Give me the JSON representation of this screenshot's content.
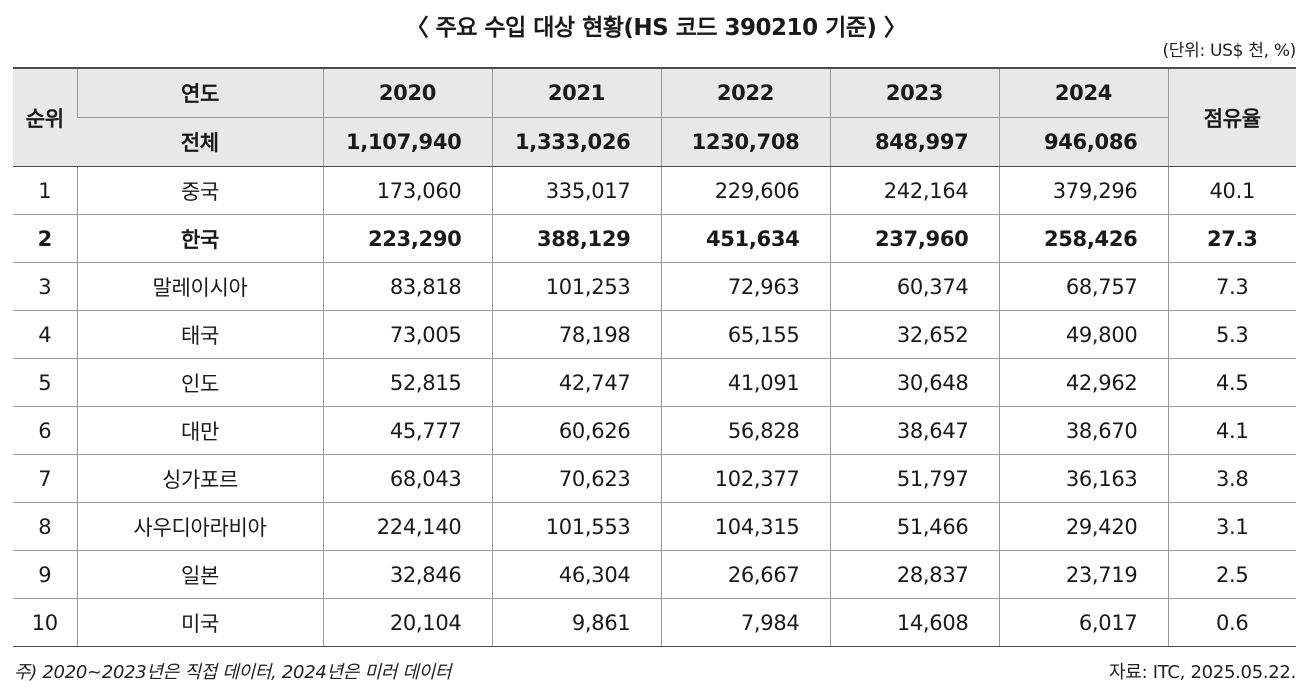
{
  "title": "〈 주요 수입 대상 현황(HS 코드 390210 기준) 〉",
  "unit": "(단위: US$ 천, %)",
  "header": {
    "rank": "순위",
    "year_label": "연도",
    "years": [
      "2020",
      "2021",
      "2022",
      "2023",
      "2024"
    ],
    "share": "점유율",
    "total_label": "전체",
    "totals": [
      "1,107,940",
      "1,333,026",
      "1230,708",
      "848,997",
      "946,086"
    ]
  },
  "rows": [
    {
      "rank": "1",
      "country": "중국",
      "values": [
        "173,060",
        "335,017",
        "229,606",
        "242,164",
        "379,296"
      ],
      "share": "40.1"
    },
    {
      "rank": "2",
      "country": "한국",
      "values": [
        "223,290",
        "388,129",
        "451,634",
        "237,960",
        "258,426"
      ],
      "share": "27.3"
    },
    {
      "rank": "3",
      "country": "말레이시아",
      "values": [
        "83,818",
        "101,253",
        "72,963",
        "60,374",
        "68,757"
      ],
      "share": "7.3"
    },
    {
      "rank": "4",
      "country": "태국",
      "values": [
        "73,005",
        "78,198",
        "65,155",
        "32,652",
        "49,800"
      ],
      "share": "5.3"
    },
    {
      "rank": "5",
      "country": "인도",
      "values": [
        "52,815",
        "42,747",
        "41,091",
        "30,648",
        "42,962"
      ],
      "share": "4.5"
    },
    {
      "rank": "6",
      "country": "대만",
      "values": [
        "45,777",
        "60,626",
        "56,828",
        "38,647",
        "38,670"
      ],
      "share": "4.1"
    },
    {
      "rank": "7",
      "country": "싱가포르",
      "values": [
        "68,043",
        "70,623",
        "102,377",
        "51,797",
        "36,163"
      ],
      "share": "3.8"
    },
    {
      "rank": "8",
      "country": "사우디아라비아",
      "values": [
        "224,140",
        "101,553",
        "104,315",
        "51,466",
        "29,420"
      ],
      "share": "3.1"
    },
    {
      "rank": "9",
      "country": "일본",
      "values": [
        "32,846",
        "46,304",
        "26,667",
        "28,837",
        "23,719"
      ],
      "share": "2.5"
    },
    {
      "rank": "10",
      "country": "미국",
      "values": [
        "20,104",
        "9,861",
        "7,984",
        "14,608",
        "6,017"
      ],
      "share": "0.6"
    }
  ],
  "footnote": "주) 2020~2023년은 직접 데이터, 2024년은 미러 데이터",
  "source": "자료: ITC, 2025.05.22."
}
